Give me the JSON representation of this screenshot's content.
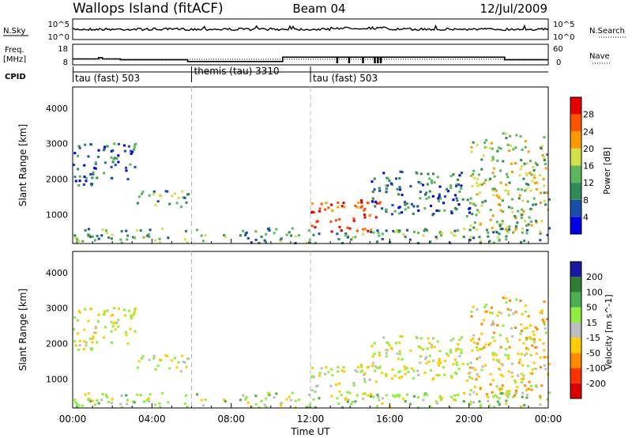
{
  "header": {
    "site": "Wallops Island (fitACF)",
    "beam": "Beam 04",
    "date": "12/Jul/2009"
  },
  "aux_panels": {
    "nsky_label": "N.Sky",
    "nsearch_label": "N.Search",
    "nsky_ticks": [
      "10^5",
      "10^0"
    ],
    "nsearch_ticks": [
      "10^5",
      "10^0"
    ],
    "freq_label_top": "Freq.",
    "freq_label_bottom": "[MHz]",
    "freq_ticks": [
      "18",
      "8"
    ],
    "nave_label": "Nave",
    "nave_ticks": [
      "60",
      "0"
    ],
    "cpid_label": "CPID"
  },
  "cpid_segments": [
    {
      "label": "tau (fast) 503",
      "start_h": 0,
      "end_h": 6
    },
    {
      "label": "themis (tau) 3310",
      "start_h": 6,
      "end_h": 12
    },
    {
      "label": "tau (fast) 503",
      "start_h": 12,
      "end_h": 24
    }
  ],
  "power_panel": {
    "ylabel": "Slant Range [km]",
    "yticks": [
      "1000",
      "2000",
      "3000",
      "4000"
    ],
    "colorbar_label": "Power [dB]",
    "colorbar_ticks": [
      "4",
      "8",
      "12",
      "16",
      "20",
      "24",
      "28"
    ],
    "colors": [
      "#0000e6",
      "#1a4ea8",
      "#2e8b57",
      "#5cb85c",
      "#d4e04a",
      "#ff9900",
      "#ff5500",
      "#e60000"
    ]
  },
  "velocity_panel": {
    "ylabel": "Slant Range [km]",
    "yticks": [
      "1000",
      "2000",
      "3000",
      "4000"
    ],
    "colorbar_label": "Velocity [m s^-1]",
    "colorbar_ticks": [
      "200",
      "100",
      "50",
      "15",
      "-15",
      "-50",
      "-100",
      "-200"
    ],
    "colors": [
      "#1a1aa0",
      "#2e7d32",
      "#4caf50",
      "#90ee40",
      "#bebebe",
      "#ffcc00",
      "#ff8c00",
      "#ff3300",
      "#dd0000"
    ]
  },
  "xaxis": {
    "label": "Time UT",
    "ticks": [
      "00:00",
      "04:00",
      "08:00",
      "12:00",
      "16:00",
      "20:00",
      "00:00"
    ]
  },
  "chart_data": {
    "type": "heatmap",
    "x_unit": "hours UT",
    "x_range": [
      0,
      24
    ],
    "y_range_km": [
      180,
      4600
    ],
    "frequency_mhz": [
      {
        "start_h": 0.0,
        "end_h": 1.3,
        "value": 10.5
      },
      {
        "start_h": 1.3,
        "end_h": 1.5,
        "value": 11.2
      },
      {
        "start_h": 1.5,
        "end_h": 2.4,
        "value": 10.5
      },
      {
        "start_h": 2.4,
        "end_h": 5.8,
        "value": 10.0
      },
      {
        "start_h": 5.8,
        "end_h": 10.6,
        "value": 9.0
      },
      {
        "start_h": 10.6,
        "end_h": 21.8,
        "value": 11.5
      },
      {
        "start_h": 21.8,
        "end_h": 24.0,
        "value": 10.0
      }
    ],
    "backscatter_regions": [
      {
        "name": "near-range ground scatter",
        "start_h": 0.0,
        "end_h": 24.0,
        "range_km": [
          180,
          600
        ],
        "power_db": 12,
        "velocity_ms": 15
      },
      {
        "name": "early patch",
        "start_h": 0.0,
        "end_h": 3.2,
        "range_km": [
          1800,
          3000
        ],
        "power_db": 8,
        "velocity_ms": 0
      },
      {
        "name": "morning band",
        "start_h": 3.0,
        "end_h": 5.8,
        "range_km": [
          1200,
          1700
        ],
        "power_db": 12,
        "velocity_ms": 0
      },
      {
        "name": "main afternoon echo",
        "start_h": 12.0,
        "end_h": 15.5,
        "range_km": [
          500,
          1400
        ],
        "power_db": 28,
        "velocity_ms": 0
      },
      {
        "name": "afternoon arc",
        "start_h": 15.0,
        "end_h": 20.0,
        "range_km": [
          900,
          2200
        ],
        "power_db": 8,
        "velocity_ms": 0
      },
      {
        "name": "evening echo",
        "start_h": 20.0,
        "end_h": 24.0,
        "range_km": [
          500,
          3300
        ],
        "power_db": 16,
        "velocity_ms": -15
      }
    ]
  }
}
